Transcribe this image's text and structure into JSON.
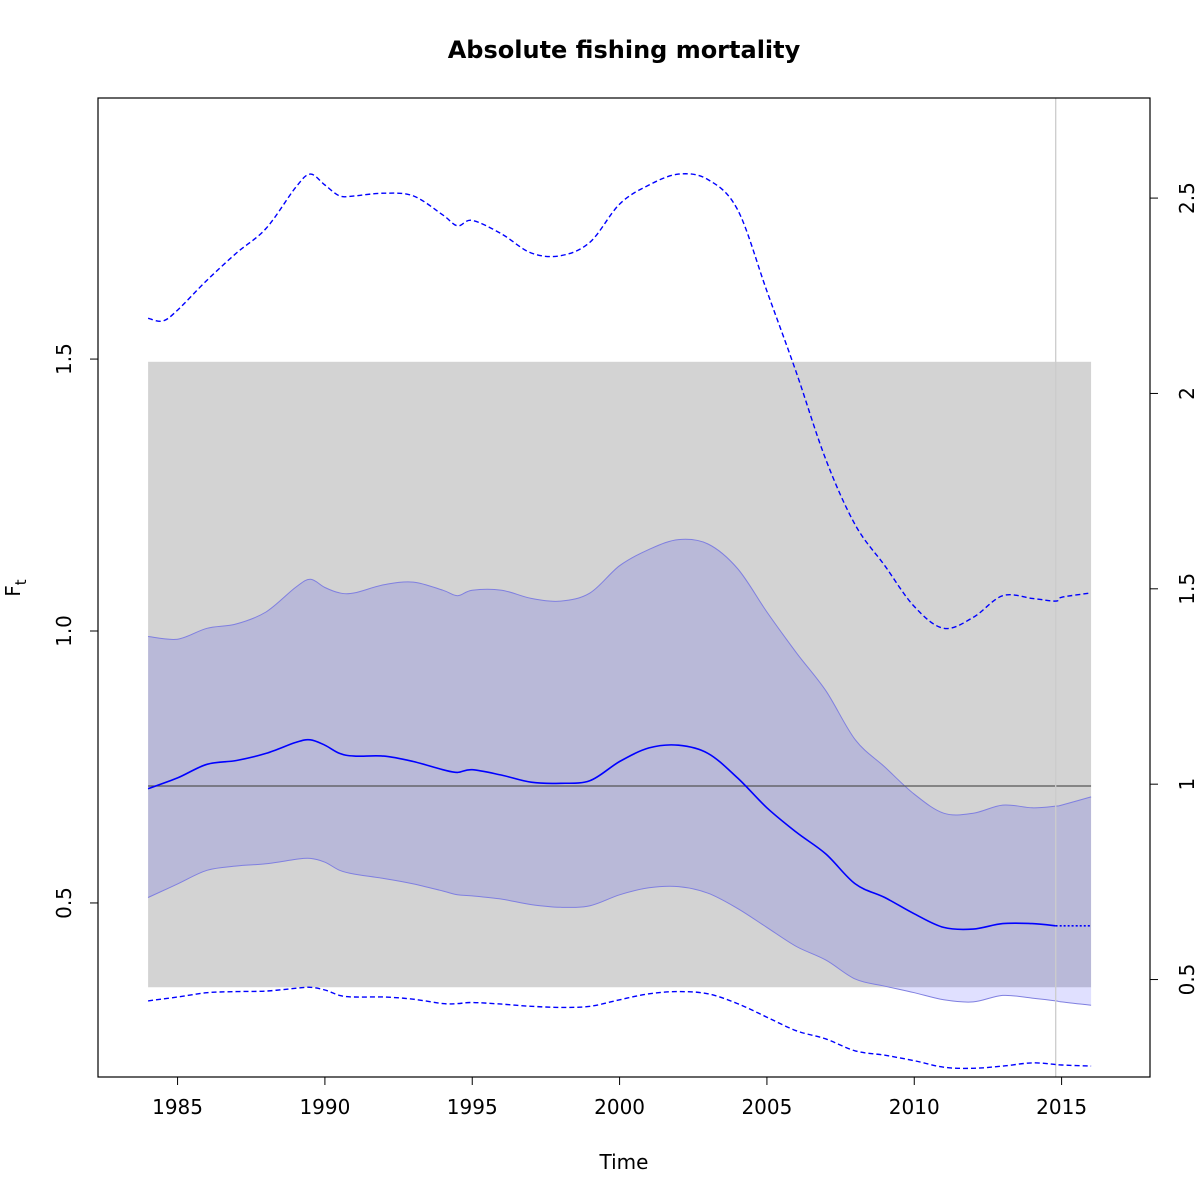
{
  "chart_data": {
    "type": "line",
    "title": "Absolute fishing mortality",
    "xlabel": "Time",
    "ylabel_main": "F",
    "ylabel_sub": "t",
    "xlim": [
      1982.3,
      2018.0
    ],
    "ylim": [
      0.18,
      1.98
    ],
    "x_ticks": [
      1985,
      1990,
      1995,
      2000,
      2005,
      2010,
      2015
    ],
    "x_tick_labels": [
      "1985",
      "1990",
      "1995",
      "2000",
      "2005",
      "2010",
      "2015"
    ],
    "y_ticks": [
      0.5,
      1.0,
      1.5
    ],
    "y_tick_labels": [
      "0.5",
      "1.0",
      "1.5"
    ],
    "y2_ticks": [
      0.5,
      1,
      1.5,
      2,
      2.5
    ],
    "y2_tick_labels": [
      "0.5",
      "1",
      "1.5",
      "2",
      "2.5"
    ],
    "y2_scale_factor": 1.392,
    "reference_band": {
      "x": [
        1984.0,
        2016.0
      ],
      "y": [
        0.345,
        1.495
      ],
      "color": "#d3d3d3"
    },
    "reference_line": {
      "y": 0.715,
      "color": "#555555"
    },
    "vertical_line": {
      "x": 2014.8,
      "color": "#cccccc"
    },
    "colors": {
      "series": "#0000ff",
      "ci_fill": "#b0b0f5"
    },
    "series": [
      {
        "role": "estimate",
        "x": [
          1984,
          1985,
          1986,
          1987,
          1988,
          1989,
          1989.5,
          1990,
          1990.5,
          1991,
          1992,
          1993,
          1994,
          1994.5,
          1995,
          1996,
          1997,
          1998,
          1999,
          2000,
          2001,
          2002,
          2003,
          2004,
          2005,
          2006,
          2007,
          2008,
          2009,
          2010,
          2011,
          2012,
          2013,
          2014,
          2014.8,
          2015,
          2016
        ],
        "y": [
          0.71,
          0.73,
          0.755,
          0.762,
          0.775,
          0.795,
          0.8,
          0.79,
          0.775,
          0.77,
          0.77,
          0.76,
          0.745,
          0.74,
          0.745,
          0.735,
          0.722,
          0.72,
          0.725,
          0.76,
          0.785,
          0.79,
          0.775,
          0.73,
          0.675,
          0.63,
          0.59,
          0.535,
          0.51,
          0.48,
          0.455,
          0.452,
          0.462,
          0.462,
          0.458,
          0.458,
          0.458
        ]
      },
      {
        "role": "ci_upper",
        "x": [
          1984,
          1985,
          1986,
          1987,
          1988,
          1989,
          1989.5,
          1990,
          1990.5,
          1991,
          1992,
          1993,
          1994,
          1994.5,
          1995,
          1996,
          1997,
          1998,
          1999,
          2000,
          2001,
          2002,
          2003,
          2004,
          2005,
          2006,
          2007,
          2008,
          2009,
          2010,
          2011,
          2012,
          2013,
          2014,
          2014.8,
          2015,
          2016
        ],
        "y": [
          0.99,
          0.985,
          1.005,
          1.013,
          1.035,
          1.08,
          1.095,
          1.08,
          1.07,
          1.07,
          1.085,
          1.09,
          1.075,
          1.065,
          1.075,
          1.075,
          1.06,
          1.055,
          1.07,
          1.12,
          1.15,
          1.168,
          1.16,
          1.115,
          1.035,
          0.96,
          0.89,
          0.8,
          0.75,
          0.7,
          0.665,
          0.665,
          0.68,
          0.675,
          0.678,
          0.68,
          0.695
        ]
      },
      {
        "role": "ci_lower",
        "x": [
          1984,
          1985,
          1986,
          1987,
          1988,
          1989,
          1989.5,
          1990,
          1990.5,
          1991,
          1992,
          1993,
          1994,
          1994.5,
          1995,
          1996,
          1997,
          1998,
          1999,
          2000,
          2001,
          2002,
          2003,
          2004,
          2005,
          2006,
          2007,
          2008,
          2009,
          2010,
          2011,
          2012,
          2013,
          2014,
          2014.8,
          2015,
          2016
        ],
        "y": [
          0.51,
          0.535,
          0.56,
          0.568,
          0.572,
          0.58,
          0.582,
          0.575,
          0.56,
          0.553,
          0.545,
          0.535,
          0.522,
          0.515,
          0.513,
          0.507,
          0.497,
          0.492,
          0.495,
          0.515,
          0.528,
          0.53,
          0.518,
          0.49,
          0.455,
          0.42,
          0.395,
          0.36,
          0.347,
          0.335,
          0.322,
          0.318,
          0.33,
          0.325,
          0.32,
          0.318,
          0.312
        ]
      },
      {
        "role": "dashed_upper",
        "x": [
          1984,
          1984.5,
          1985,
          1986,
          1987,
          1988,
          1989,
          1989.5,
          1990,
          1990.5,
          1991,
          1992,
          1993,
          1994,
          1994.5,
          1995,
          1996,
          1997,
          1998,
          1999,
          2000,
          2001,
          2002,
          2003,
          2004,
          2005,
          2006,
          2007,
          2008,
          2009,
          2010,
          2011,
          2012,
          2013,
          2014,
          2014.8,
          2015,
          2016
        ],
        "y": [
          1.575,
          1.57,
          1.59,
          1.645,
          1.695,
          1.74,
          1.815,
          1.84,
          1.82,
          1.8,
          1.8,
          1.805,
          1.8,
          1.765,
          1.745,
          1.755,
          1.73,
          1.695,
          1.69,
          1.715,
          1.785,
          1.82,
          1.84,
          1.83,
          1.775,
          1.625,
          1.475,
          1.315,
          1.195,
          1.12,
          1.045,
          1.005,
          1.025,
          1.065,
          1.06,
          1.055,
          1.062,
          1.07
        ]
      },
      {
        "role": "dashed_lower",
        "x": [
          1984,
          1985,
          1986,
          1987,
          1988,
          1989,
          1989.5,
          1990,
          1990.5,
          1991,
          1992,
          1993,
          1994,
          1994.5,
          1995,
          1996,
          1997,
          1998,
          1999,
          2000,
          2001,
          2002,
          2003,
          2004,
          2005,
          2006,
          2007,
          2008,
          2009,
          2010,
          2011,
          2012,
          2013,
          2014,
          2014.8,
          2015,
          2016
        ],
        "y": [
          0.32,
          0.327,
          0.335,
          0.337,
          0.338,
          0.343,
          0.345,
          0.34,
          0.33,
          0.327,
          0.327,
          0.323,
          0.315,
          0.315,
          0.317,
          0.314,
          0.31,
          0.308,
          0.31,
          0.322,
          0.333,
          0.337,
          0.333,
          0.315,
          0.29,
          0.265,
          0.25,
          0.228,
          0.22,
          0.21,
          0.198,
          0.196,
          0.2,
          0.206,
          0.203,
          0.202,
          0.2
        ]
      }
    ]
  }
}
